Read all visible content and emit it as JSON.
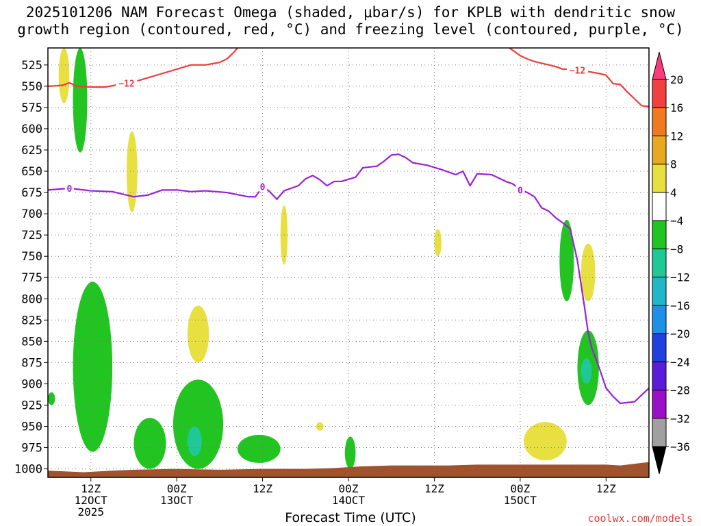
{
  "title_line1": "2025101206 NAM Forecast Omega (shaded, μbar/s) for KPLB with dendritic snow",
  "title_line2": "growth region (contoured, red, °C) and freezing level (contoured, purple, °C)",
  "footer": "coolwx.com/models",
  "chart_data": {
    "type": "area",
    "title": "2025101206 NAM Forecast Omega (shaded, μbar/s) for KPLB with dendritic snow growth region (contoured, red, °C) and freezing level (contoured, purple, °C)",
    "xlabel": "Forecast Time (UTC)",
    "ylabel": "",
    "x_units": "forecast hour from 2025-10-12 06Z",
    "xlim": [
      0,
      84
    ],
    "ylim": [
      1010,
      505
    ],
    "y_scale": "pressure (reversed)",
    "grid": true,
    "y_ticks": [
      525,
      550,
      575,
      600,
      625,
      650,
      675,
      700,
      725,
      750,
      775,
      800,
      825,
      850,
      875,
      900,
      925,
      950,
      975,
      1000
    ],
    "x_ticks": [
      {
        "hour": 6,
        "label": [
          "12Z",
          "12OCT",
          "2025"
        ]
      },
      {
        "hour": 18,
        "label": [
          "00Z",
          "13OCT"
        ]
      },
      {
        "hour": 30,
        "label": [
          "12Z"
        ]
      },
      {
        "hour": 42,
        "label": [
          "00Z",
          "14OCT"
        ]
      },
      {
        "hour": 54,
        "label": [
          "12Z"
        ]
      },
      {
        "hour": 66,
        "label": [
          "00Z",
          "15OCT"
        ]
      },
      {
        "hour": 78,
        "label": [
          "12Z"
        ]
      }
    ],
    "colorbar": {
      "labels": [
        "20",
        "16",
        "12",
        "8",
        "4",
        "−4",
        "−8",
        "−12",
        "−16",
        "−20",
        "−24",
        "−28",
        "−32",
        "−36"
      ],
      "colors": [
        "#ff3a7a",
        "#f04040",
        "#f07a20",
        "#e8a820",
        "#e8e040",
        "#ffffff",
        "#22c422",
        "#20c898",
        "#20b8c8",
        "#1e90e8",
        "#2040e0",
        "#5a1cd8",
        "#9a10c8",
        "#a0a0a0",
        "#000000"
      ]
    },
    "contours": [
      {
        "name": "−12",
        "color": "#ee3b3b",
        "label_positions_hours": [
          11,
          74
        ],
        "points": [
          [
            0,
            550
          ],
          [
            2,
            549
          ],
          [
            3,
            546
          ],
          [
            4,
            550
          ],
          [
            6,
            551
          ],
          [
            8,
            551
          ],
          [
            10,
            548
          ],
          [
            12,
            545
          ],
          [
            14,
            540
          ],
          [
            16,
            535
          ],
          [
            18,
            530
          ],
          [
            20,
            525
          ],
          [
            22,
            525
          ],
          [
            24,
            522
          ],
          [
            25,
            518
          ],
          [
            26,
            510
          ],
          [
            26.5,
            505
          ]
        ],
        "points2": [
          [
            64.5,
            505
          ],
          [
            66,
            514
          ],
          [
            67,
            518
          ],
          [
            68,
            521
          ],
          [
            70,
            525
          ],
          [
            71,
            527
          ],
          [
            72,
            530
          ],
          [
            73,
            530
          ],
          [
            75,
            532
          ],
          [
            77,
            535
          ],
          [
            78,
            537
          ],
          [
            79,
            547
          ],
          [
            80,
            548
          ],
          [
            81,
            557
          ],
          [
            82,
            565
          ],
          [
            83,
            573
          ],
          [
            84,
            574
          ]
        ]
      },
      {
        "name": "0",
        "color": "#9b1fd6",
        "label_positions_hours": [
          3,
          30,
          66
        ],
        "points": [
          [
            0,
            672
          ],
          [
            3,
            670
          ],
          [
            6,
            673
          ],
          [
            9,
            674
          ],
          [
            12,
            680
          ],
          [
            14,
            678
          ],
          [
            16,
            672
          ],
          [
            18,
            672
          ],
          [
            20,
            674
          ],
          [
            22,
            673
          ],
          [
            25,
            675
          ],
          [
            28,
            680
          ],
          [
            29,
            680
          ],
          [
            30,
            668
          ],
          [
            31,
            674
          ],
          [
            32,
            683
          ],
          [
            33,
            673
          ],
          [
            35,
            667
          ],
          [
            36,
            659
          ],
          [
            37,
            655
          ],
          [
            38,
            660
          ],
          [
            39,
            667
          ],
          [
            40,
            662
          ],
          [
            41,
            662
          ],
          [
            43,
            657
          ],
          [
            44,
            646
          ],
          [
            45,
            645
          ],
          [
            46,
            644
          ],
          [
            47,
            638
          ],
          [
            48,
            631
          ],
          [
            49,
            630
          ],
          [
            50,
            634
          ],
          [
            51,
            640
          ],
          [
            53,
            643
          ],
          [
            55,
            648
          ],
          [
            57,
            654
          ],
          [
            58,
            650
          ],
          [
            59,
            667
          ],
          [
            60,
            653
          ],
          [
            62,
            654
          ],
          [
            64,
            662
          ],
          [
            65,
            665
          ],
          [
            66,
            672
          ],
          [
            67,
            675
          ],
          [
            68,
            680
          ],
          [
            69,
            693
          ],
          [
            70,
            697
          ],
          [
            71,
            705
          ],
          [
            72,
            711
          ],
          [
            73,
            718
          ],
          [
            74,
            755
          ],
          [
            75,
            810
          ],
          [
            75.5,
            840
          ],
          [
            76,
            858
          ],
          [
            77,
            880
          ],
          [
            78,
            905
          ],
          [
            79,
            915
          ],
          [
            80,
            923
          ],
          [
            81,
            922
          ],
          [
            82,
            921
          ],
          [
            83,
            913
          ],
          [
            84,
            905
          ]
        ]
      }
    ],
    "shaded_regions": [
      {
        "color": "#e8e040",
        "hours": [
          1.5,
          3.0
        ],
        "pressure": [
          505,
          570
        ],
        "value_class": "4 to 8"
      },
      {
        "color": "#22c422",
        "hours": [
          3.5,
          5.5
        ],
        "pressure": [
          505,
          628
        ],
        "value_class": "−4 to −8"
      },
      {
        "color": "#e8e040",
        "hours": [
          11.0,
          12.5
        ],
        "pressure": [
          603,
          698
        ],
        "value_class": "4 to 8"
      },
      {
        "color": "#22c422",
        "hours": [
          3.5,
          9.0
        ],
        "pressure": [
          780,
          980
        ],
        "value_class": "−4 to −8"
      },
      {
        "color": "#22c422",
        "hours": [
          0,
          1.0
        ],
        "pressure": [
          910,
          925
        ],
        "value_class": "−4 to −8"
      },
      {
        "color": "#22c422",
        "hours": [
          12.0,
          16.5
        ],
        "pressure": [
          940,
          1000
        ],
        "value_class": "−4 to −8"
      },
      {
        "color": "#22c422",
        "hours": [
          17.5,
          24.5
        ],
        "pressure": [
          895,
          1000
        ],
        "value_class": "−4 to −8"
      },
      {
        "color": "#20c898",
        "hours": [
          19.5,
          21.5
        ],
        "pressure": [
          950,
          985
        ],
        "value_class": "−8 to −12"
      },
      {
        "color": "#e8e040",
        "hours": [
          19.5,
          22.5
        ],
        "pressure": [
          808,
          875
        ],
        "value_class": "4 to 8"
      },
      {
        "color": "#22c422",
        "hours": [
          26.5,
          32.5
        ],
        "pressure": [
          960,
          993
        ],
        "value_class": "−4 to −8"
      },
      {
        "color": "#e8e040",
        "hours": [
          32.5,
          33.5
        ],
        "pressure": [
          690,
          760
        ],
        "value_class": "4 to 8"
      },
      {
        "color": "#e8e040",
        "hours": [
          37.5,
          38.5
        ],
        "pressure": [
          945,
          955
        ],
        "value_class": "4 to 8"
      },
      {
        "color": "#22c422",
        "hours": [
          41.5,
          43.0
        ],
        "pressure": [
          962,
          1000
        ],
        "value_class": "−4 to −8"
      },
      {
        "color": "#e8e040",
        "hours": [
          54.0,
          55.0
        ],
        "pressure": [
          718,
          750
        ],
        "value_class": "4 to 8"
      },
      {
        "color": "#e8e040",
        "hours": [
          66.5,
          72.5
        ],
        "pressure": [
          945,
          990
        ],
        "value_class": "4 to 8"
      },
      {
        "color": "#22c422",
        "hours": [
          71.5,
          73.5
        ],
        "pressure": [
          707,
          803
        ],
        "value_class": "−4 to −8"
      },
      {
        "color": "#e8e040",
        "hours": [
          74.5,
          76.5
        ],
        "pressure": [
          735,
          803
        ],
        "value_class": "4 to 8"
      },
      {
        "color": "#22c422",
        "hours": [
          74.0,
          77.0
        ],
        "pressure": [
          837,
          925
        ],
        "value_class": "−4 to −8"
      },
      {
        "color": "#20c898",
        "hours": [
          74.5,
          76.0
        ],
        "pressure": [
          870,
          900
        ],
        "value_class": "−8 to −12"
      }
    ],
    "terrain": {
      "color": "#a0522d",
      "points": [
        [
          0,
          1002
        ],
        [
          5,
          1004
        ],
        [
          9,
          1002
        ],
        [
          12,
          1001
        ],
        [
          18,
          1000
        ],
        [
          24,
          1001
        ],
        [
          30,
          1000
        ],
        [
          36,
          1000
        ],
        [
          40,
          999
        ],
        [
          44,
          997
        ],
        [
          48,
          996
        ],
        [
          52,
          996
        ],
        [
          56,
          996
        ],
        [
          60,
          995
        ],
        [
          66,
          995
        ],
        [
          72,
          995
        ],
        [
          78,
          995
        ],
        [
          80,
          996
        ],
        [
          82,
          994
        ],
        [
          84,
          992
        ]
      ]
    }
  }
}
